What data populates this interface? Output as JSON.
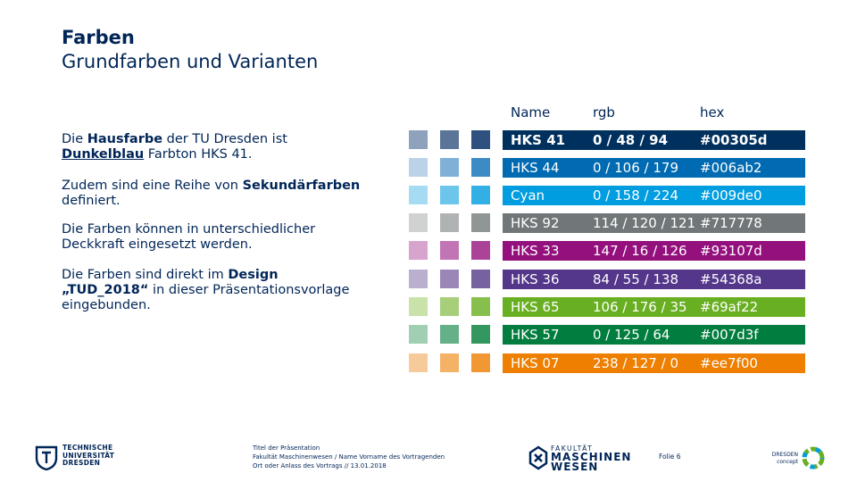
{
  "header": {
    "title": "Farben",
    "subtitle": "Grundfarben und Varianten"
  },
  "body": {
    "p1_a": "Die ",
    "p1_b": "Hausfarbe",
    "p1_c": " der TU Dresden ist ",
    "p1_d": "Dunkelblau",
    "p1_e": " Farbton HKS 41.",
    "p2_a": "Zudem sind eine Reihe von ",
    "p2_b": "Sekundärfarben",
    "p2_c": " definiert.",
    "p3": "Die Farben können in unterschiedlicher Deckkraft eingesetzt werden.",
    "p4_a": "Die Farben sind direkt im ",
    "p4_b": "Design „TUD_2018“",
    "p4_c": " in dieser Präsentationsvorlage eingebunden."
  },
  "table": {
    "col_name": "Name",
    "col_rgb": "rgb",
    "col_hex": "hex",
    "rows": [
      {
        "name": "HKS 41",
        "rgb": "0 / 48 / 94",
        "hex": "#00305d",
        "color": "#00305d",
        "swatches": [
          "#8fa2bb",
          "#5a7597",
          "#2f5180"
        ]
      },
      {
        "name": "HKS 44",
        "rgb": "0 / 106 / 179",
        "hex": "#006ab2",
        "color": "#006ab2",
        "swatches": [
          "#bcd2e8",
          "#7fb0d8",
          "#3d8bc5"
        ]
      },
      {
        "name": "Cyan",
        "rgb": "0 / 158 / 224",
        "hex": "#009de0",
        "color": "#009de0",
        "swatches": [
          "#a6dcf3",
          "#6cc6ec",
          "#32b0e6"
        ]
      },
      {
        "name": "HKS 92",
        "rgb": "114 / 120 / 121",
        "hex": "#717778",
        "color": "#717778",
        "swatches": [
          "#d0d2d2",
          "#b0b3b4",
          "#909596"
        ]
      },
      {
        "name": "HKS 33",
        "rgb": "147 / 16 / 126",
        "hex": "#93107d",
        "color": "#93107d",
        "swatches": [
          "#d6a4cd",
          "#c275b5",
          "#ab4499"
        ]
      },
      {
        "name": "HKS 36",
        "rgb": "84 / 55 / 138",
        "hex": "#54368a",
        "color": "#54368a",
        "swatches": [
          "#bbafd0",
          "#9a87b8",
          "#7661a1"
        ]
      },
      {
        "name": "HKS 65",
        "rgb": "106 / 176 / 35",
        "hex": "#69af22",
        "color": "#69af22",
        "swatches": [
          "#c8e2aa",
          "#a7cf7a",
          "#86bf4c"
        ]
      },
      {
        "name": "HKS 57",
        "rgb": "0 / 125 / 64",
        "hex": "#007d3f",
        "color": "#007d3f",
        "swatches": [
          "#a0cfb3",
          "#66b088",
          "#33975f"
        ]
      },
      {
        "name": "HKS 07",
        "rgb": "238 / 127 / 0",
        "hex": "#ee7f00",
        "color": "#ee7f00",
        "swatches": [
          "#f7cb99",
          "#f4b266",
          "#f19733"
        ]
      }
    ]
  },
  "footer": {
    "tud_line1": "TECHNISCHE",
    "tud_line2": "UNIVERSITÄT",
    "tud_line3": "DRESDEN",
    "info_line1": "Titel der Präsentation",
    "info_line2": "Fakultät Maschinenwesen / Name Vorname des Vortragenden",
    "info_line3": "Ort oder Anlass des Vortrags // 13.01.2018",
    "fak_line1": "FAKULTÄT",
    "fak_line2": "MASCHINEN",
    "fak_line3": "WESEN",
    "slide": "Folie 6",
    "concept_line1": "DRESDEN",
    "concept_line2": "concept"
  }
}
